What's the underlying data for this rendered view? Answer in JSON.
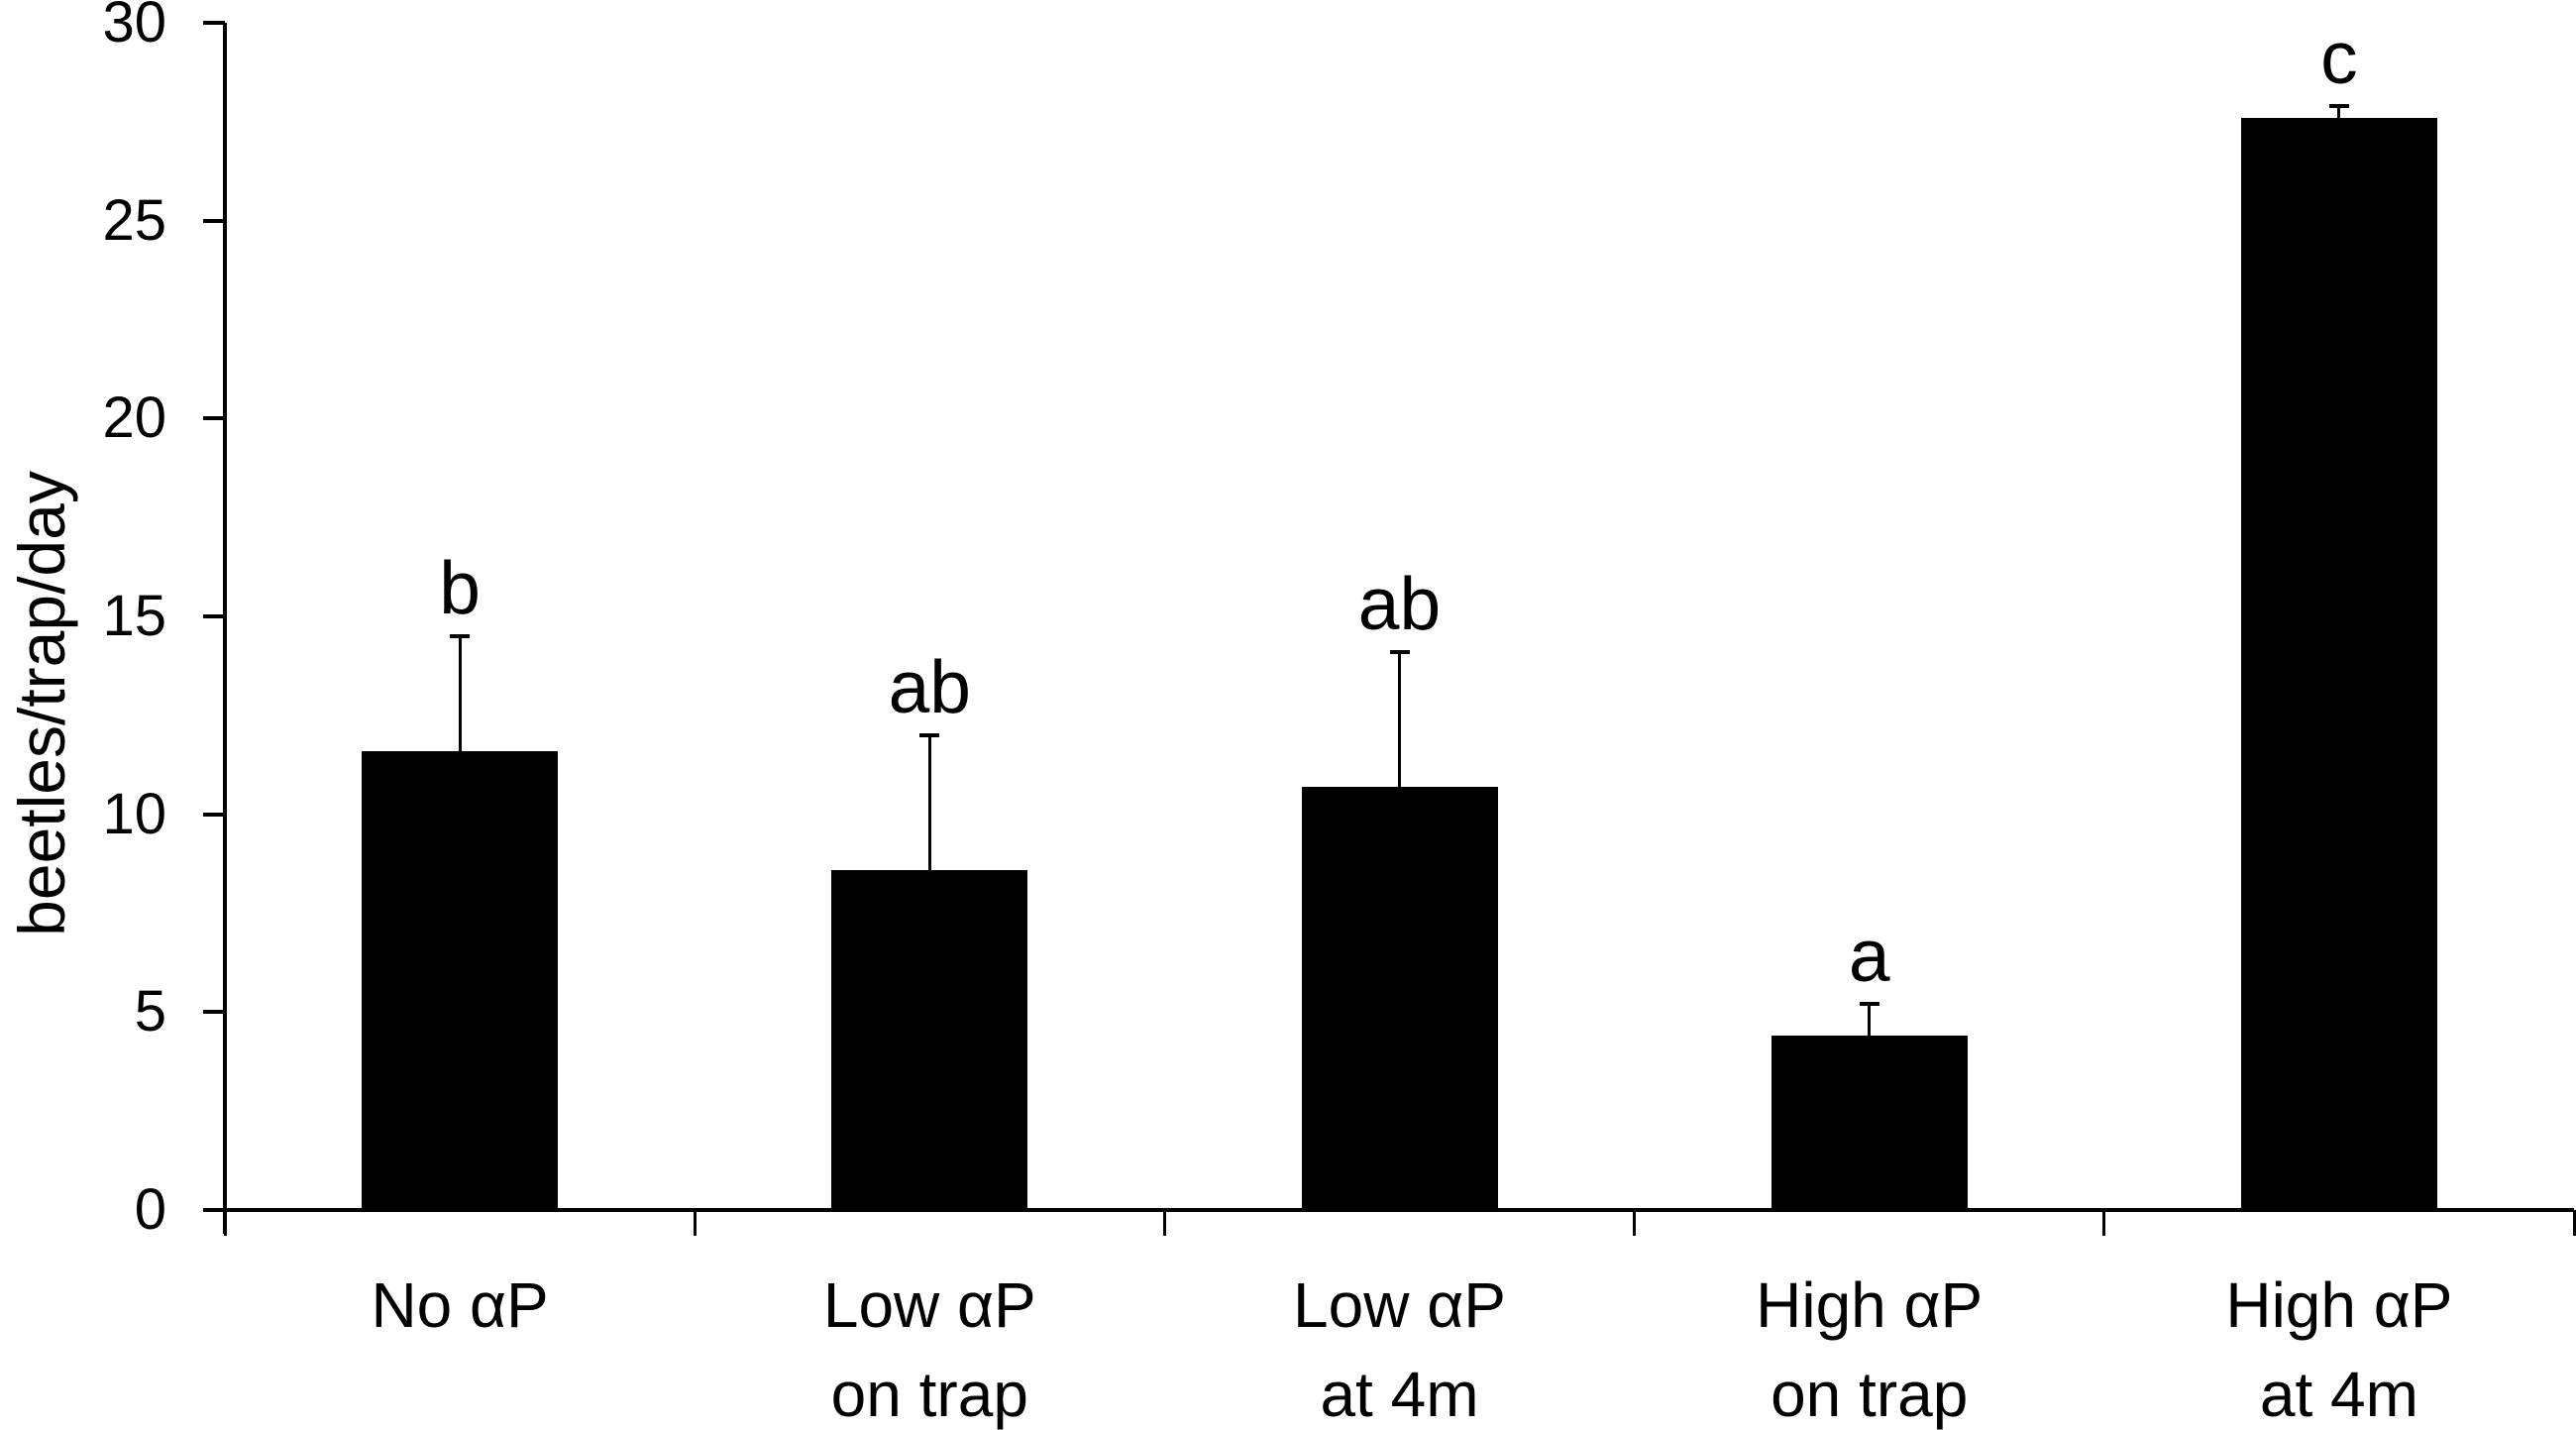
{
  "chart_data": {
    "type": "bar",
    "title": "",
    "xlabel": "",
    "ylabel": "beetles/trap/day",
    "ylim": [
      0,
      30
    ],
    "yticks": [
      0,
      5,
      10,
      15,
      20,
      25,
      30
    ],
    "grid": false,
    "legend_position": "none",
    "bar_color": "#000000",
    "background_color": "#ffffff",
    "categories": [
      "No αP",
      "Low αP on trap",
      "Low αP at 4m",
      "High αP on trap",
      "High αP at 4m"
    ],
    "category_label_lines": [
      [
        "No αP"
      ],
      [
        "Low αP",
        "on trap"
      ],
      [
        "Low αP",
        "at 4m"
      ],
      [
        "High αP",
        "on trap"
      ],
      [
        "High αP",
        "at 4m"
      ]
    ],
    "values": [
      11.6,
      8.6,
      10.7,
      4.4,
      27.6
    ],
    "error_plus": [
      2.9,
      3.4,
      3.4,
      0.8,
      0.3
    ],
    "sig_letters": [
      "b",
      "ab",
      "ab",
      "a",
      "c"
    ]
  }
}
